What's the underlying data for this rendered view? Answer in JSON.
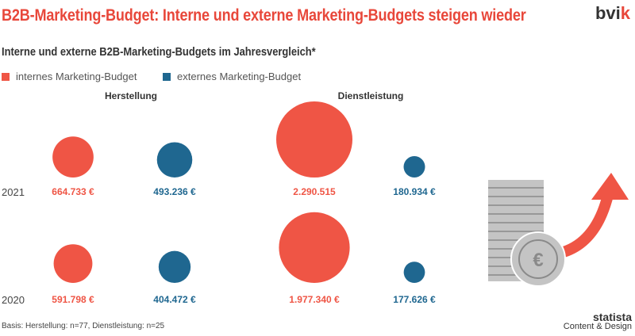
{
  "header": {
    "title": "B2B-Marketing-Budget: Interne und externe Marketing-Budgets steigen wieder",
    "logo": "bvik"
  },
  "colors": {
    "internal": "#ef5545",
    "external": "#1f6790"
  },
  "chart_data": {
    "type": "bubble",
    "title": "Interne und externe B2B-Marketing-Budgets im Jahresvergleich*",
    "legend": [
      "internes Marketing-Budget",
      "externes Marketing-Budget"
    ],
    "groups": [
      "Herstellung",
      "Dienstleistung"
    ],
    "years": [
      "2021",
      "2020"
    ],
    "series": [
      {
        "year": "2021",
        "values": [
          664733,
          493236,
          2290515,
          180934
        ],
        "labels": [
          "664.733 €",
          "493.236 €",
          "2.290.515",
          "180.934 €"
        ]
      },
      {
        "year": "2020",
        "values": [
          591798,
          404472,
          1977340,
          177626
        ],
        "labels": [
          "591.798 €",
          "404.472 €",
          "1.977.340 €",
          "177.626 €"
        ]
      }
    ]
  },
  "footer": {
    "basis": "Basis: Herstellung: n=77, Dienstleistung: n=25",
    "brand": "statista",
    "brand_sub": "Content & Design"
  }
}
